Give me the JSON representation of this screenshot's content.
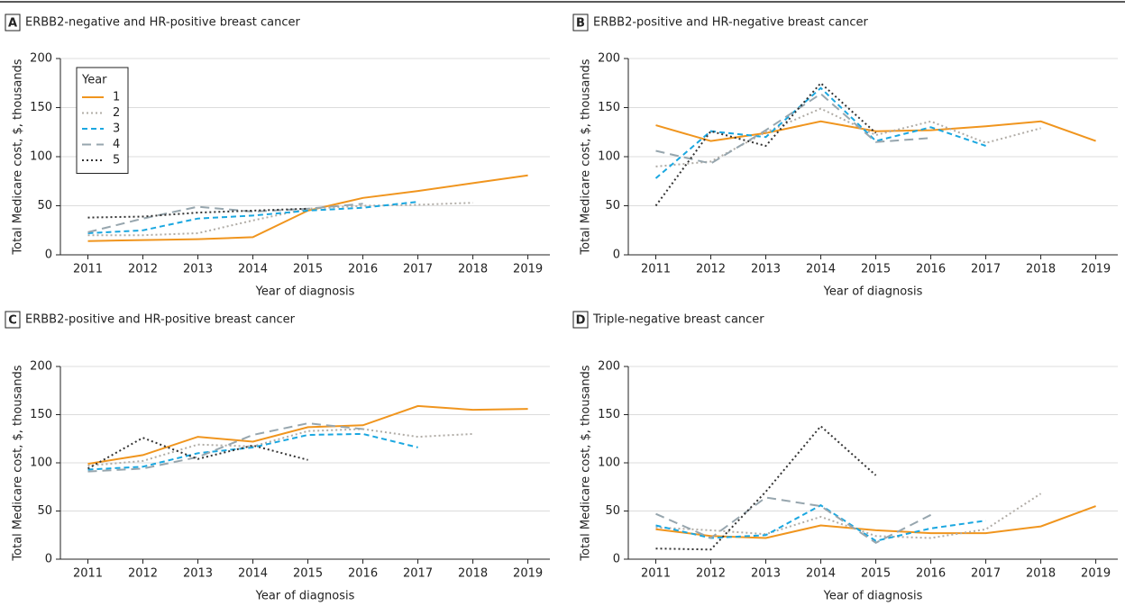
{
  "chart_data": [
    {
      "type": "line",
      "panel_label": "A",
      "title": "ERBB2-negative and HR-positive breast cancer",
      "x_label": "Year of diagnosis",
      "y_label": "Total Medicare cost, $, thousands",
      "x": [
        2011,
        2012,
        2013,
        2014,
        2015,
        2016,
        2017,
        2018,
        2019
      ],
      "xlim": [
        2010.5,
        2019.4
      ],
      "xticks": [
        2011,
        2012,
        2013,
        2014,
        2015,
        2016,
        2017,
        2018,
        2019
      ],
      "ylim": [
        0,
        200
      ],
      "yticks": [
        0,
        50,
        100,
        150,
        200
      ],
      "grid": true,
      "legend": "upper-left",
      "legend_title": "Year",
      "series": [
        {
          "name": "1",
          "color": "#f0951e",
          "dash": "solid",
          "values": [
            14,
            15,
            16,
            18,
            45,
            58,
            65,
            73,
            81
          ]
        },
        {
          "name": "2",
          "color": "#b0aca6",
          "dash": "dot",
          "values": [
            20,
            20,
            22,
            35,
            47,
            50,
            51,
            53,
            null
          ]
        },
        {
          "name": "3",
          "color": "#1aa7e0",
          "dash": "dash",
          "values": [
            22,
            25,
            37,
            40,
            45,
            48,
            54,
            null,
            null
          ]
        },
        {
          "name": "4",
          "color": "#97a6ae",
          "dash": "longdash",
          "values": [
            23,
            37,
            49,
            44,
            47,
            52,
            null,
            null,
            null
          ]
        },
        {
          "name": "5",
          "color": "#333333",
          "dash": "dot",
          "values": [
            38,
            39,
            43,
            45,
            47,
            null,
            null,
            null,
            null
          ]
        }
      ]
    },
    {
      "type": "line",
      "panel_label": "B",
      "title": "ERBB2-positive and HR-negative breast cancer",
      "x_label": "Year of diagnosis",
      "y_label": "Total Medicare cost, $, thousands",
      "x": [
        2011,
        2012,
        2013,
        2014,
        2015,
        2016,
        2017,
        2018,
        2019
      ],
      "xlim": [
        2010.5,
        2019.4
      ],
      "xticks": [
        2011,
        2012,
        2013,
        2014,
        2015,
        2016,
        2017,
        2018,
        2019
      ],
      "ylim": [
        0,
        200
      ],
      "yticks": [
        0,
        50,
        100,
        150,
        200
      ],
      "grid": true,
      "series": [
        {
          "color": "#f0951e",
          "dash": "solid",
          "values": [
            132,
            116,
            124,
            136,
            126,
            127,
            131,
            136,
            116
          ]
        },
        {
          "color": "#b0aca6",
          "dash": "dot",
          "values": [
            90,
            95,
            125,
            149,
            122,
            136,
            114,
            129,
            null
          ]
        },
        {
          "color": "#1aa7e0",
          "dash": "dash",
          "values": [
            78,
            126,
            120,
            170,
            116,
            130,
            111,
            null,
            null
          ]
        },
        {
          "color": "#97a6ae",
          "dash": "longdash",
          "values": [
            106,
            93,
            127,
            164,
            115,
            119,
            null,
            null,
            null
          ]
        },
        {
          "color": "#333333",
          "dash": "dot",
          "values": [
            50,
            126,
            111,
            175,
            124,
            null,
            null,
            null,
            null
          ]
        }
      ]
    },
    {
      "type": "line",
      "panel_label": "C",
      "title": "ERBB2-positive and HR-positive breast cancer",
      "x_label": "Year of diagnosis",
      "y_label": "Total Medicare cost, $, thousands",
      "x": [
        2011,
        2012,
        2013,
        2014,
        2015,
        2016,
        2017,
        2018,
        2019
      ],
      "xlim": [
        2010.5,
        2019.4
      ],
      "xticks": [
        2011,
        2012,
        2013,
        2014,
        2015,
        2016,
        2017,
        2018,
        2019
      ],
      "ylim": [
        0,
        200
      ],
      "yticks": [
        0,
        50,
        100,
        150,
        200
      ],
      "grid": true,
      "series": [
        {
          "color": "#f0951e",
          "dash": "solid",
          "values": [
            99,
            108,
            127,
            122,
            137,
            139,
            159,
            155,
            156
          ]
        },
        {
          "color": "#b0aca6",
          "dash": "dot",
          "values": [
            97,
            102,
            119,
            117,
            133,
            135,
            127,
            130,
            null
          ]
        },
        {
          "color": "#1aa7e0",
          "dash": "dash",
          "values": [
            93,
            96,
            110,
            116,
            129,
            130,
            116,
            null,
            null
          ]
        },
        {
          "color": "#97a6ae",
          "dash": "longdash",
          "values": [
            91,
            94,
            106,
            129,
            141,
            135,
            null,
            null,
            null
          ]
        },
        {
          "color": "#333333",
          "dash": "dot",
          "values": [
            94,
            126,
            104,
            118,
            103,
            null,
            null,
            null,
            null
          ]
        }
      ]
    },
    {
      "type": "line",
      "panel_label": "D",
      "title": "Triple-negative breast cancer",
      "x_label": "Year of diagnosis",
      "y_label": "Total Medicare cost, $, thousands",
      "x": [
        2011,
        2012,
        2013,
        2014,
        2015,
        2016,
        2017,
        2018,
        2019
      ],
      "xlim": [
        2010.5,
        2019.4
      ],
      "xticks": [
        2011,
        2012,
        2013,
        2014,
        2015,
        2016,
        2017,
        2018,
        2019
      ],
      "ylim": [
        0,
        200
      ],
      "yticks": [
        0,
        50,
        100,
        150,
        200
      ],
      "grid": true,
      "series": [
        {
          "color": "#f0951e",
          "dash": "solid",
          "values": [
            31,
            24,
            22,
            35,
            30,
            27,
            27,
            34,
            55
          ]
        },
        {
          "color": "#b0aca6",
          "dash": "dot",
          "values": [
            33,
            30,
            26,
            44,
            24,
            22,
            31,
            68,
            null
          ]
        },
        {
          "color": "#1aa7e0",
          "dash": "dash",
          "values": [
            35,
            22,
            25,
            56,
            19,
            32,
            40,
            null,
            null
          ]
        },
        {
          "color": "#97a6ae",
          "dash": "longdash",
          "values": [
            47,
            22,
            64,
            55,
            17,
            46,
            null,
            null,
            null
          ]
        },
        {
          "color": "#333333",
          "dash": "dot",
          "values": [
            11,
            10,
            70,
            138,
            87,
            null,
            null,
            null,
            null
          ]
        }
      ]
    }
  ]
}
